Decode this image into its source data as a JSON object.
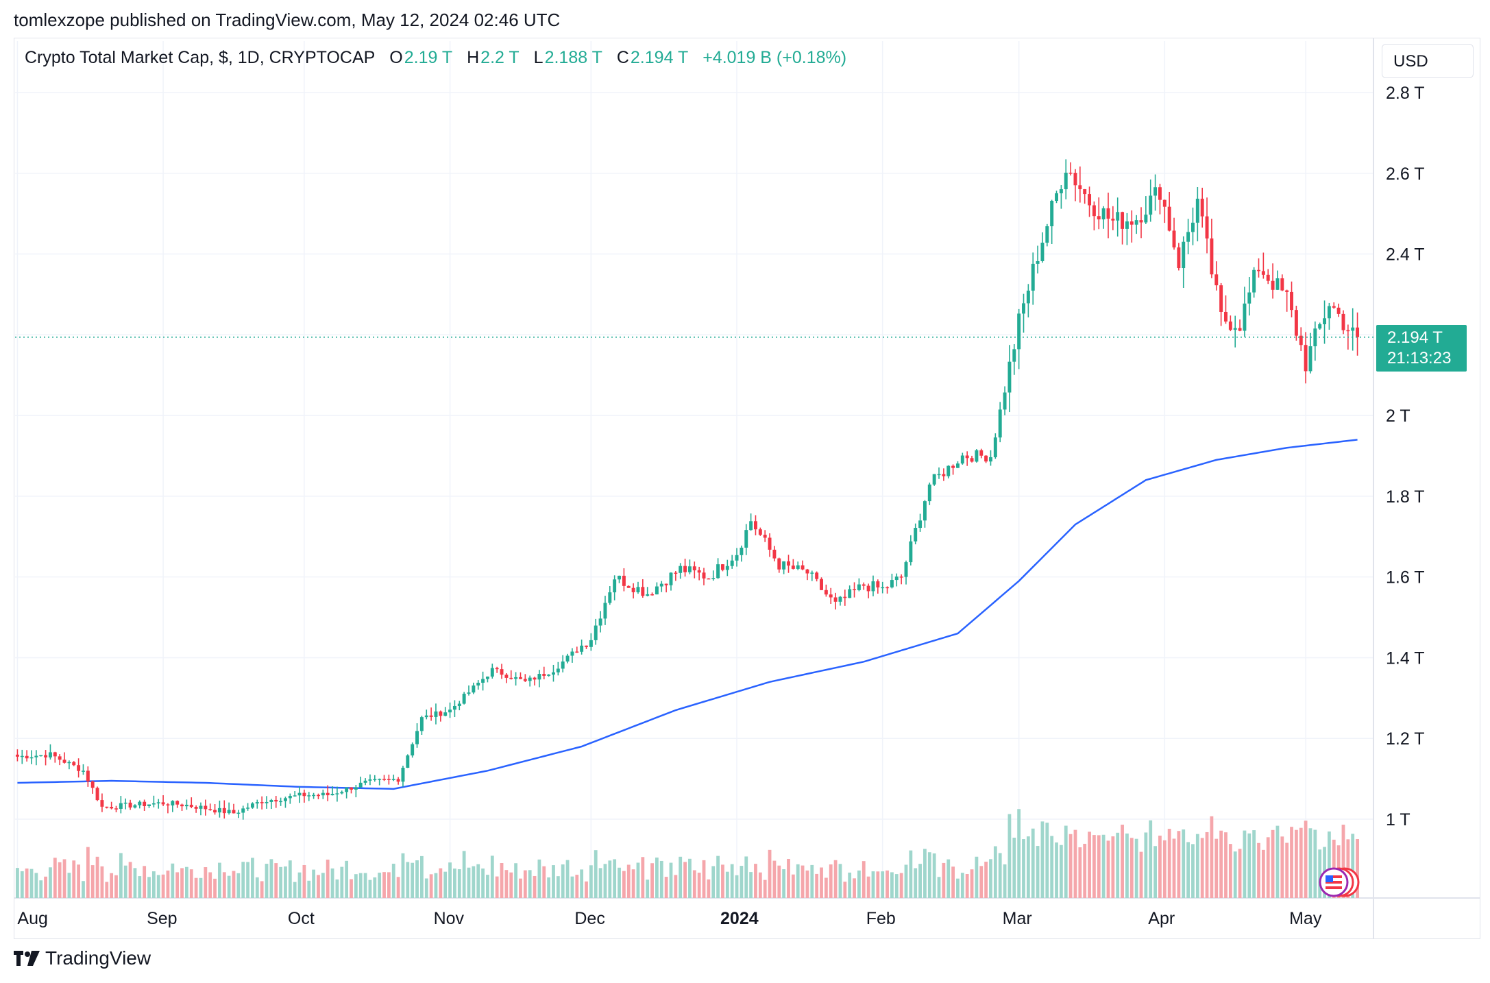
{
  "header": {
    "publisher_line": "tomlexzope published on TradingView.com, May 12, 2024 02:46 UTC"
  },
  "legend": {
    "symbol": "Crypto Total Market Cap, $, 1D, CRYPTOCAP",
    "o_label": "O",
    "o_value": "2.19 T",
    "h_label": "H",
    "h_value": "2.2 T",
    "l_label": "L",
    "l_value": "2.188 T",
    "c_label": "C",
    "c_value": "2.194 T",
    "change": "+4.019 B (+0.18%)"
  },
  "currency_button": "USD",
  "last_price": {
    "value": "2.194 T",
    "countdown": "21:13:23"
  },
  "footer": {
    "brand": "TradingView"
  },
  "colors": {
    "up": "#22ab94",
    "down": "#f23645",
    "ma": "#2962ff",
    "grid": "#f0f3fa",
    "up_vol": "#9fd6cc",
    "down_vol": "#f5a6ab"
  },
  "chart_data": {
    "type": "candlestick",
    "title": "Crypto Total Market Cap, $, 1D, CRYPTOCAP",
    "ylim": [
      0.8,
      2.85
    ],
    "y_unit": "T",
    "y_ticks": [
      "2.8 T",
      "2.6 T",
      "2.4 T",
      "2.2 T",
      "2 T",
      "1.8 T",
      "1.6 T",
      "1.4 T",
      "1.2 T",
      "1 T"
    ],
    "y_tick_values": [
      2.8,
      2.6,
      2.4,
      2.2,
      2.0,
      1.8,
      1.6,
      1.4,
      1.2,
      1.0
    ],
    "x_ticks": [
      "Aug",
      "Sep",
      "Oct",
      "Nov",
      "Dec",
      "2024",
      "Feb",
      "Mar",
      "Apr",
      "May"
    ],
    "x_tick_days": [
      0,
      31,
      61,
      92,
      122,
      153,
      184,
      213,
      244,
      274
    ],
    "start_date": "2023-08-01",
    "end_date": "2024-05-12",
    "close_anchors": [
      [
        0,
        1.155
      ],
      [
        7,
        1.16
      ],
      [
        14,
        1.12
      ],
      [
        18,
        1.03
      ],
      [
        31,
        1.04
      ],
      [
        36,
        1.035
      ],
      [
        46,
        1.015
      ],
      [
        52,
        1.045
      ],
      [
        61,
        1.06
      ],
      [
        66,
        1.06
      ],
      [
        74,
        1.09
      ],
      [
        81,
        1.1
      ],
      [
        86,
        1.25
      ],
      [
        92,
        1.27
      ],
      [
        101,
        1.37
      ],
      [
        108,
        1.34
      ],
      [
        114,
        1.37
      ],
      [
        122,
        1.45
      ],
      [
        127,
        1.6
      ],
      [
        134,
        1.56
      ],
      [
        141,
        1.62
      ],
      [
        147,
        1.6
      ],
      [
        153,
        1.66
      ],
      [
        156,
        1.74
      ],
      [
        162,
        1.63
      ],
      [
        168,
        1.61
      ],
      [
        174,
        1.53
      ],
      [
        180,
        1.58
      ],
      [
        184,
        1.57
      ],
      [
        188,
        1.6
      ],
      [
        194,
        1.83
      ],
      [
        201,
        1.9
      ],
      [
        207,
        1.9
      ],
      [
        213,
        2.23
      ],
      [
        217,
        2.4
      ],
      [
        223,
        2.62
      ],
      [
        228,
        2.53
      ],
      [
        233,
        2.48
      ],
      [
        238,
        2.49
      ],
      [
        243,
        2.56
      ],
      [
        247,
        2.38
      ],
      [
        251,
        2.53
      ],
      [
        256,
        2.24
      ],
      [
        260,
        2.23
      ],
      [
        264,
        2.37
      ],
      [
        270,
        2.29
      ],
      [
        274,
        2.13
      ],
      [
        279,
        2.28
      ],
      [
        284,
        2.2
      ],
      [
        285,
        2.194
      ]
    ],
    "volume_scale_note": "relative",
    "ma_anchors": [
      [
        0,
        1.09
      ],
      [
        20,
        1.095
      ],
      [
        40,
        1.09
      ],
      [
        60,
        1.08
      ],
      [
        80,
        1.075
      ],
      [
        100,
        1.12
      ],
      [
        120,
        1.18
      ],
      [
        140,
        1.27
      ],
      [
        160,
        1.34
      ],
      [
        180,
        1.39
      ],
      [
        200,
        1.46
      ],
      [
        213,
        1.59
      ],
      [
        225,
        1.73
      ],
      [
        240,
        1.84
      ],
      [
        255,
        1.89
      ],
      [
        270,
        1.92
      ],
      [
        285,
        1.94
      ]
    ]
  }
}
